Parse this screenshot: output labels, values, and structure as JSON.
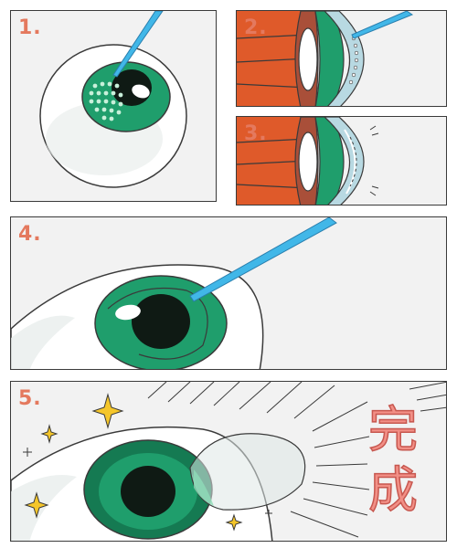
{
  "steps": [
    {
      "label": "1."
    },
    {
      "label": "2."
    },
    {
      "label": "3."
    },
    {
      "label": "4."
    },
    {
      "label": "5."
    }
  ],
  "done_text": "完成",
  "colors": {
    "iris": "#1f9e6c",
    "iris_dark": "#157a52",
    "pupil": "#0f1a14",
    "sclera": "#ffffff",
    "tissue": "#df5a2a",
    "needle": "#41b7e8",
    "number": "#e4795e",
    "done": "#f28f86",
    "sparkle": "#f5c62a"
  },
  "icons": [
    "needle-icon",
    "sparkle-icon",
    "lens-icon",
    "eye-icon"
  ]
}
